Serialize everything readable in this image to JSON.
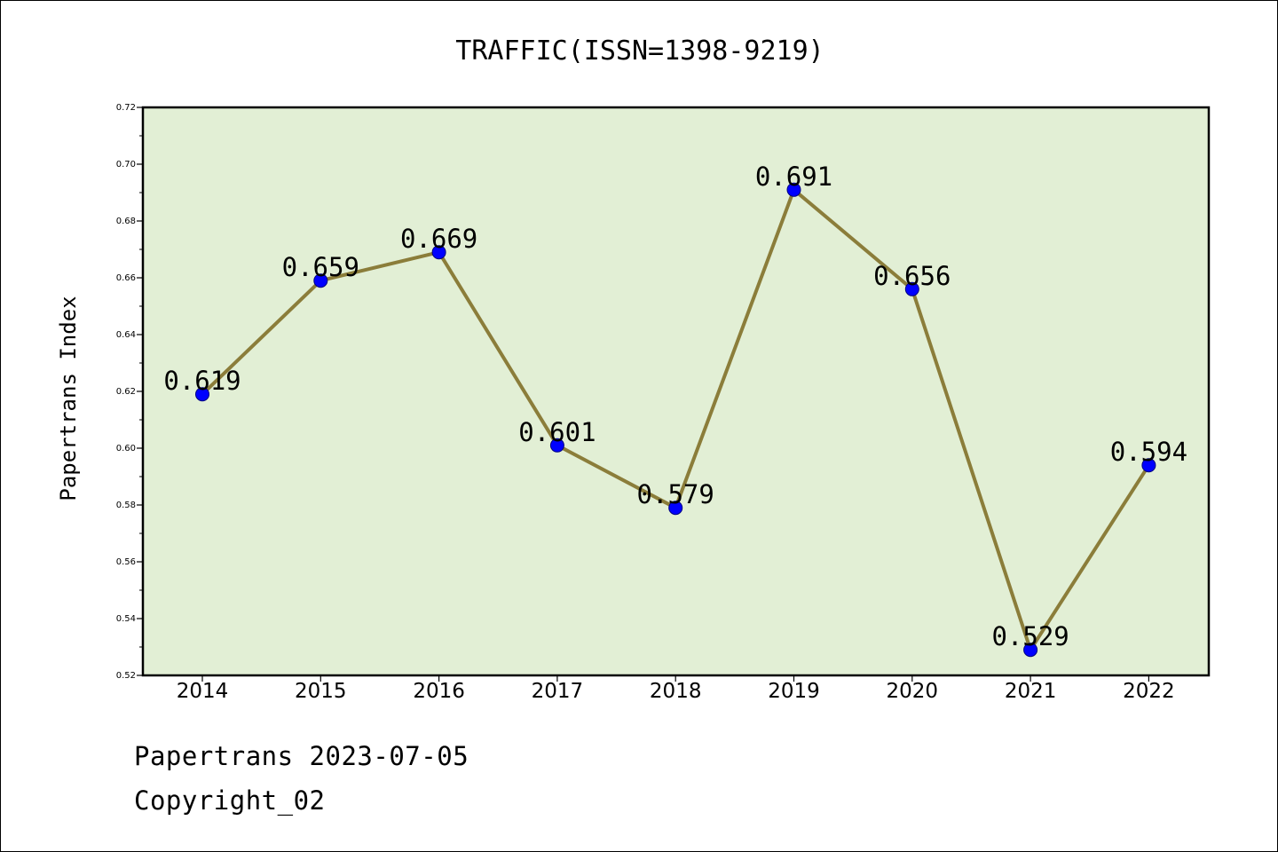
{
  "chart_data": {
    "type": "line",
    "title": "TRAFFIC(ISSN=1398-9219)",
    "xlabel": "",
    "ylabel": "Papertrans Index",
    "categories": [
      "2014",
      "2015",
      "2016",
      "2017",
      "2018",
      "2019",
      "2020",
      "2021",
      "2022"
    ],
    "series": [
      {
        "name": "Papertrans Index",
        "values": [
          0.619,
          0.659,
          0.669,
          0.601,
          0.579,
          0.691,
          0.656,
          0.529,
          0.594
        ],
        "labels": [
          "0.619",
          "0.659",
          "0.669",
          "0.601",
          "0.579",
          "0.691",
          "0.656",
          "0.529",
          "0.594"
        ]
      }
    ],
    "ylim": [
      0.52,
      0.72
    ],
    "yticks": [
      0.52,
      0.54,
      0.56,
      0.58,
      0.6,
      0.62,
      0.64,
      0.66,
      0.68,
      0.7,
      0.72
    ],
    "ytick_labels": [
      "0.52",
      "0.54",
      "0.56",
      "0.58",
      "0.60",
      "0.62",
      "0.64",
      "0.66",
      "0.68",
      "0.70",
      "0.72"
    ],
    "grid": false,
    "legend": "none"
  },
  "footer": {
    "line1": "Papertrans 2023-07-05",
    "line2": "Copyright_02"
  },
  "colors": {
    "plot_background": "#e2efd5",
    "line": "#8b7d3a",
    "marker": "#0000ff",
    "axis": "#000000"
  }
}
